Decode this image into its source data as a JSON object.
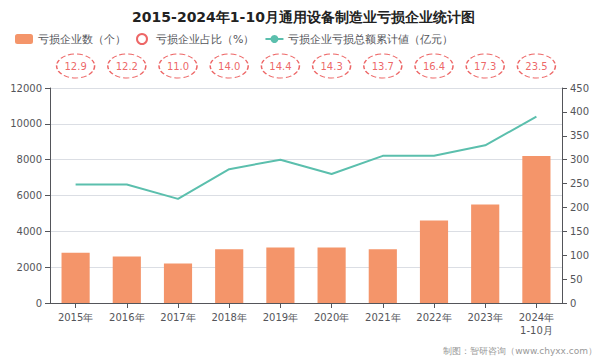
{
  "chart_data": {
    "type": "bar",
    "title": "2015-2024年1-10月通用设备制造业亏损企业统计图",
    "categories": [
      "2015年",
      "2016年",
      "2017年",
      "2018年",
      "2019年",
      "2020年",
      "2021年",
      "2022年",
      "2023年",
      "2024年\n1-10月"
    ],
    "series": [
      {
        "name": "亏损企业数（个）",
        "type": "bar",
        "color": "#F4956A",
        "values": [
          2800,
          2600,
          2200,
          3000,
          3100,
          3100,
          3000,
          4600,
          5500,
          8200
        ]
      },
      {
        "name": "亏损企业占比（%）",
        "type": "scatter",
        "marker": "circle",
        "line_style": "dashed",
        "color": "#E84040",
        "data_labels": true,
        "values": [
          12.9,
          12.2,
          11.0,
          14.0,
          14.4,
          14.3,
          13.7,
          16.4,
          17.3,
          23.5
        ],
        "value_labels": [
          "12.9",
          "12.2",
          "11.0",
          "14.0",
          "14.4",
          "14.3",
          "13.7",
          "16.4",
          "17.3",
          "23.5"
        ]
      },
      {
        "name": "亏损企业亏损总额累计値（亿元）",
        "type": "line",
        "axis": "y2",
        "color": "#5BBFAD",
        "values": [
          248,
          248,
          218,
          280,
          300,
          270,
          308,
          308,
          330,
          390
        ]
      }
    ],
    "ylim": [
      0,
      12000
    ],
    "yticks": [
      0,
      2000,
      4000,
      6000,
      8000,
      10000,
      12000
    ],
    "y2lim": [
      0,
      450
    ],
    "y2ticks": [
      0,
      50,
      100,
      150,
      200,
      250,
      300,
      350,
      400,
      450
    ],
    "grid": true,
    "legend": "upper left",
    "annotations": [
      "制图：智研咨询（www.chyxx.com）"
    ]
  }
}
